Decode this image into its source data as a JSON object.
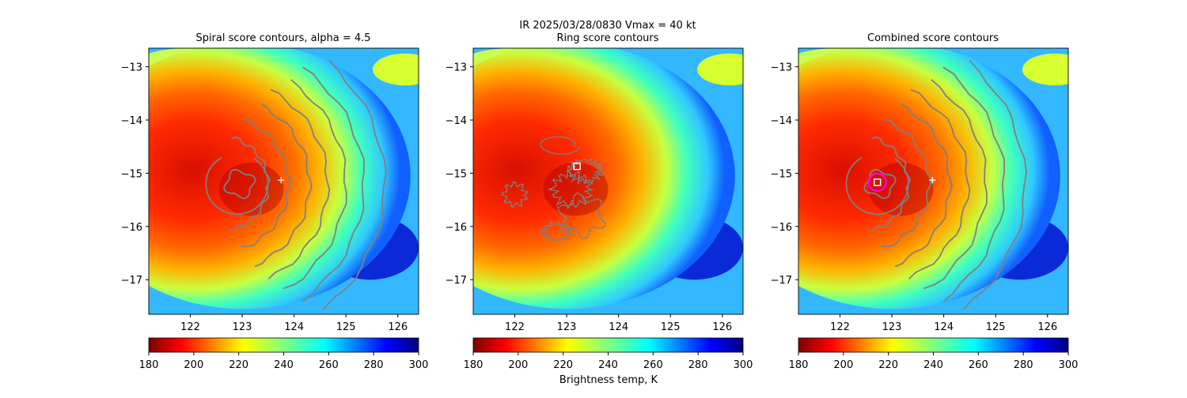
{
  "suptitle": {
    "line1": "IR  2025/03/28/0830    Vmax = 40 kt",
    "line2": "Ring score contours"
  },
  "colorbar": {
    "cmap": "jet",
    "range": [
      180,
      300
    ],
    "ticks": [
      180,
      200,
      220,
      240,
      260,
      280,
      300
    ],
    "label": "Brightness temp, K"
  },
  "chart_data": [
    {
      "type": "heatmap",
      "title": "Spiral score contours, alpha =  4.5",
      "xlabel": "",
      "ylabel": "",
      "xlim": [
        121.2,
        126.4
      ],
      "ylim": [
        -17.65,
        -12.65
      ],
      "xticks": [
        122,
        123,
        124,
        125,
        126
      ],
      "yticks": [
        -13,
        -14,
        -15,
        -16,
        -17
      ],
      "colorbar_label": "",
      "contours": "spiral",
      "markers": [
        {
          "kind": "plus",
          "lon": 123.75,
          "lat": -15.13,
          "color": "#ffffff"
        }
      ]
    },
    {
      "type": "heatmap",
      "title": "",
      "xlabel": "",
      "ylabel": "",
      "xlim": [
        121.2,
        126.4
      ],
      "ylim": [
        -17.65,
        -12.65
      ],
      "xticks": [
        122,
        123,
        124,
        125,
        126
      ],
      "yticks": [
        -13,
        -14,
        -15,
        -16,
        -17
      ],
      "colorbar_label": "Brightness temp, K",
      "contours": "ring",
      "markers": [
        {
          "kind": "square",
          "lon": 123.2,
          "lat": -14.87,
          "color": "#ffffff"
        }
      ]
    },
    {
      "type": "heatmap",
      "title": "Combined score contours",
      "xlabel": "",
      "ylabel": "",
      "xlim": [
        121.2,
        126.4
      ],
      "ylim": [
        -17.65,
        -12.65
      ],
      "xticks": [
        122,
        123,
        124,
        125,
        126
      ],
      "yticks": [
        -13,
        -14,
        -15,
        -16,
        -17
      ],
      "colorbar_label": "",
      "contours": "combined",
      "markers": [
        {
          "kind": "plus",
          "lon": 123.78,
          "lat": -15.13,
          "color": "#ffffff"
        },
        {
          "kind": "circle",
          "lon": 122.72,
          "lat": -15.17,
          "color": "#ff00ff"
        },
        {
          "kind": "square",
          "lon": 122.72,
          "lat": -15.17,
          "color": "#ffffff"
        }
      ]
    }
  ]
}
